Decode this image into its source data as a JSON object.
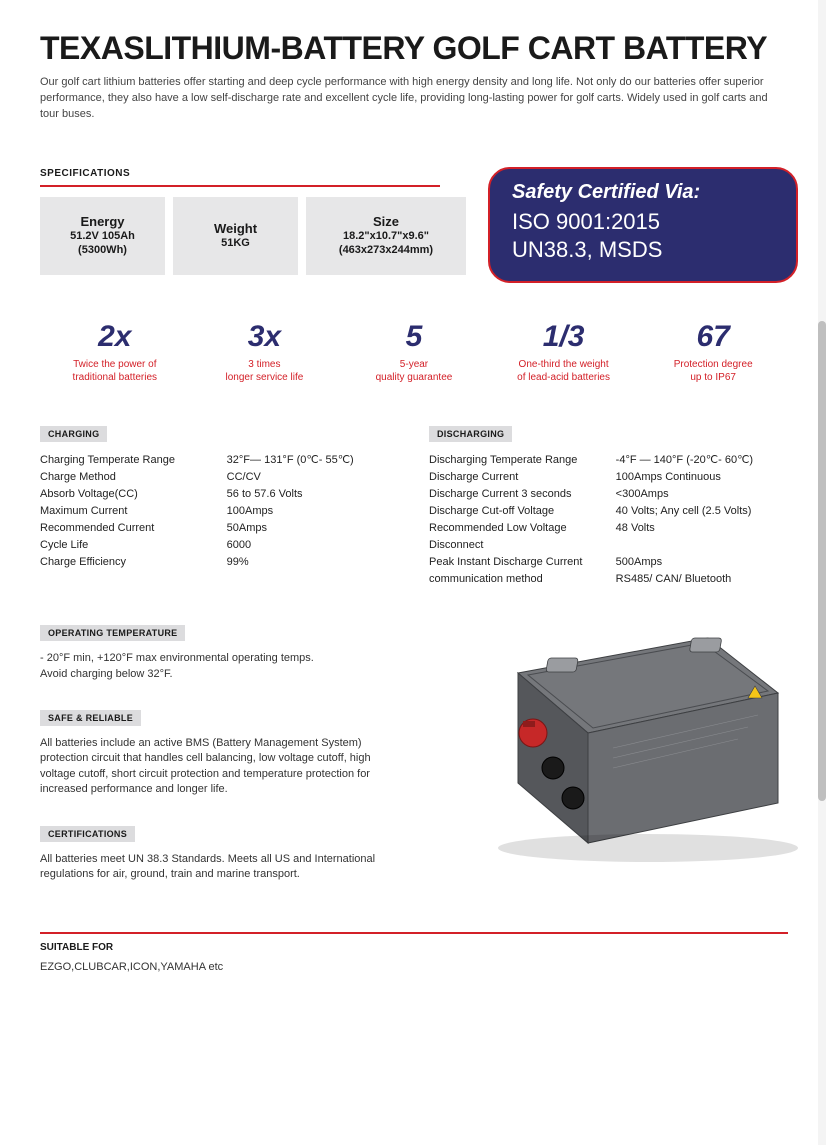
{
  "title": "TEXASLITHIUM-BATTERY GOLF CART BATTERY",
  "intro": "Our golf cart lithium batteries offer starting and deep cycle performance with high energy density and long life. Not only do our batteries offer superior performance, they also have a low self-discharge rate and excellent cycle life, providing long-lasting power for golf carts. Widely used in golf carts and tour buses.",
  "spec_section_label": "SPECIFICATIONS",
  "spec_boxes": [
    {
      "label": "Energy",
      "line1": "51.2V 105Ah",
      "line2": "(5300Wh)"
    },
    {
      "label": "Weight",
      "line1": "51KG",
      "line2": ""
    },
    {
      "label": "Size",
      "line1": "18.2\"x10.7\"x9.6\"",
      "line2": "(463x273x244mm)"
    }
  ],
  "safety": {
    "header": "Safety Certified Via:",
    "line1": "ISO 9001:2015",
    "line2": "UN38.3, MSDS"
  },
  "stats": [
    {
      "big": "2x",
      "desc": "Twice the power of\ntraditional batteries"
    },
    {
      "big": "3x",
      "desc": "3 times\nlonger service life"
    },
    {
      "big": "5",
      "desc": "5-year\nquality guarantee"
    },
    {
      "big": "1/3",
      "desc": "One-third the weight\nof lead-acid batteries"
    },
    {
      "big": "67",
      "desc": "Protection degree\nup to IP67"
    }
  ],
  "charging": {
    "label": "CHARGING",
    "rows": [
      [
        "Charging Temperate Range",
        "32°F— 131°F (0℃- 55℃)"
      ],
      [
        "Charge Method",
        "CC/CV"
      ],
      [
        "Absorb Voltage(CC)",
        "56 to 57.6 Volts"
      ],
      [
        "Maximum Current",
        "100Amps"
      ],
      [
        "Recommended Current",
        "50Amps"
      ],
      [
        "Cycle Life",
        "6000"
      ],
      [
        "Charge Efficiency",
        "99%"
      ]
    ]
  },
  "discharging": {
    "label": "DISCHARGING",
    "rows": [
      [
        "Discharging Temperate Range",
        "-4°F — 140°F (-20℃- 60℃)"
      ],
      [
        "Discharge Current",
        "100Amps Continuous"
      ],
      [
        "Discharge Current 3 seconds",
        "<300Amps"
      ],
      [
        "Discharge Cut-off Voltage",
        "40 Volts; Any cell (2.5 Volts)"
      ],
      [
        "Recommended Low Voltage Disconnect",
        "48 Volts"
      ],
      [
        "Peak Instant Discharge Current",
        "500Amps"
      ],
      [
        "communication method",
        "RS485/ CAN/ Bluetooth"
      ]
    ]
  },
  "op_temp": {
    "label": "OPERATING TEMPERATURE",
    "text": "- 20°F min, +120°F max environmental operating temps.\nAvoid charging below 32°F."
  },
  "safe_reliable": {
    "label": "SAFE & RELIABLE",
    "text": "All batteries include an active BMS (Battery Management System) protection circuit that handles cell balancing, low voltage cutoff, high voltage cutoff, short circuit protection and temperature protection for increased performance and longer life."
  },
  "certifications": {
    "label": "CERTIFICATIONS",
    "text": "All batteries meet UN 38.3 Standards. Meets all US and International regulations for air, ground, train and marine transport."
  },
  "suitable": {
    "label": "SUITABLE FOR",
    "text": "EZGO,CLUBCAR,ICON,YAMAHA etc"
  },
  "colors": {
    "accent_red": "#d32028",
    "accent_navy": "#2c2d6f",
    "box_grey": "#e7e7e8",
    "tag_grey": "#dcdcde",
    "text": "#1a1a1a"
  },
  "battery_image": {
    "body_color": "#6b6d71",
    "body_dark": "#3d3f42",
    "terminal_red": "#c62828",
    "terminal_black": "#1a1a1a",
    "latch_color": "#9a9ca0",
    "warning_yellow": "#f5c518"
  },
  "scrollbar": {
    "thumb_top_pct": 28,
    "thumb_height_pct": 42
  }
}
